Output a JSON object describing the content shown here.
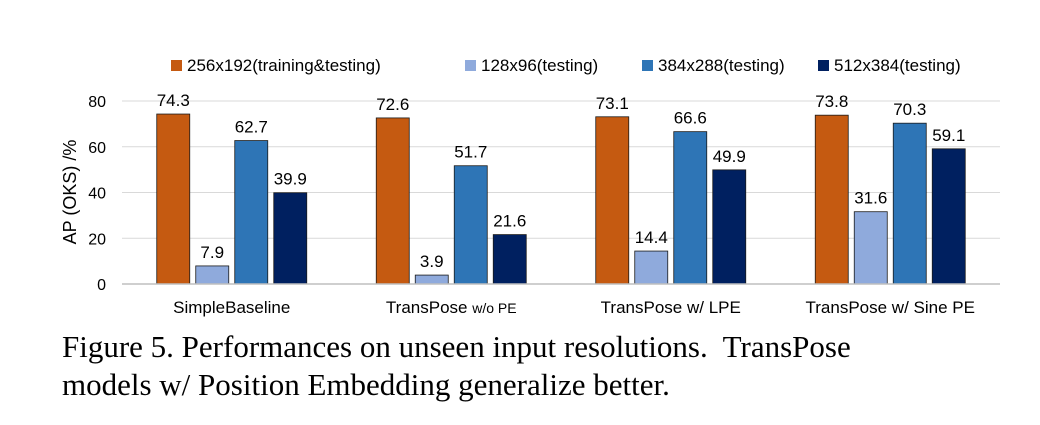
{
  "chart_data": {
    "type": "bar",
    "categories": [
      "SimpleBaseline",
      "TransPose w/o PE",
      "TransPose w/ LPE",
      "TransPose w/ Sine PE"
    ],
    "series": [
      {
        "name": "256x192(training&testing)",
        "color": "#c55a11",
        "values": [
          74.3,
          72.6,
          73.1,
          73.8
        ]
      },
      {
        "name": "128x96(testing)",
        "color": "#8faadc",
        "values": [
          7.9,
          3.9,
          14.4,
          31.6
        ]
      },
      {
        "name": "384x288(testing)",
        "color": "#2e75b6",
        "values": [
          62.7,
          51.7,
          66.6,
          70.3
        ]
      },
      {
        "name": "512x384(testing)",
        "color": "#002060",
        "values": [
          39.9,
          21.6,
          49.9,
          59.1
        ]
      }
    ],
    "value_labels": [
      [
        "74.3",
        "7.9",
        "62.7",
        "39.9"
      ],
      [
        "72.6",
        "3.9",
        "51.7",
        "21.6"
      ],
      [
        "73.1",
        "14.4",
        "66.6",
        "49.9"
      ],
      [
        "73.8",
        "31.6",
        "70.3",
        "59.1"
      ]
    ],
    "ylabel": "AP (OKS) /%",
    "ylim": [
      0,
      80
    ],
    "yticks": [
      "0",
      "20",
      "40",
      "60",
      "80"
    ],
    "grid": true,
    "legend_position": "top"
  },
  "caption": {
    "line1": "Figure 5. Performances on unseen input resolutions.  TransPose",
    "line2": "models w/ Position Embedding generalize better."
  }
}
